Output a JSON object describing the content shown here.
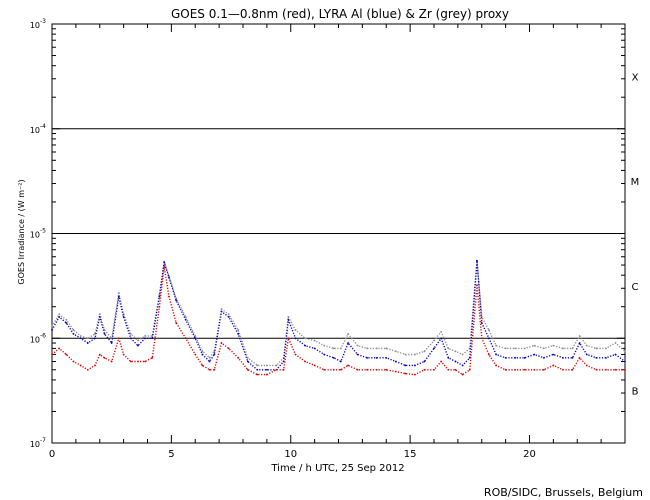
{
  "chart_data": {
    "type": "scatter",
    "title": "GOES 0.1—0.8nm (red), LYRA Al (blue) & Zr (grey) proxy",
    "xlabel": "Time / h UTC, 25 Sep 2012",
    "ylabel": "GOES Irradiance / (W m⁻²)",
    "xlim": [
      0,
      24
    ],
    "ylim": [
      1e-07,
      0.001
    ],
    "yscale": "log",
    "x_ticks": [
      0,
      5,
      10,
      15,
      20
    ],
    "x_tick_labels": [
      "0",
      "5",
      "10",
      "15",
      "20"
    ],
    "y_ticks": [
      {
        "base": "10",
        "exp": "-7"
      },
      {
        "base": "10",
        "exp": "-6"
      },
      {
        "base": "10",
        "exp": "-5"
      },
      {
        "base": "10",
        "exp": "-4"
      },
      {
        "base": "10",
        "exp": "-3"
      }
    ],
    "flare_classes": [
      {
        "label": "X",
        "center": 0.000316
      },
      {
        "label": "M",
        "center": 3.16e-05
      },
      {
        "label": "C",
        "center": 3.16e-06
      },
      {
        "label": "B",
        "center": 3.16e-07
      }
    ],
    "class_boundaries": [
      0.0001,
      1e-05,
      1e-06
    ],
    "series": [
      {
        "name": "GOES 0.1—0.8nm",
        "color": "#e00000",
        "x": [
          0.0,
          0.3,
          0.6,
          0.9,
          1.2,
          1.5,
          1.8,
          2.0,
          2.2,
          2.5,
          2.8,
          3.0,
          3.3,
          3.6,
          3.9,
          4.2,
          4.5,
          4.7,
          4.9,
          5.2,
          5.6,
          6.0,
          6.3,
          6.6,
          6.8,
          7.1,
          7.4,
          7.8,
          8.2,
          8.6,
          9.0,
          9.4,
          9.7,
          9.9,
          10.2,
          10.6,
          11.0,
          11.4,
          11.8,
          12.1,
          12.4,
          12.8,
          13.2,
          13.6,
          14.0,
          14.4,
          14.8,
          15.2,
          15.6,
          16.0,
          16.3,
          16.6,
          16.9,
          17.2,
          17.5,
          17.8,
          18.0,
          18.3,
          18.6,
          19.0,
          19.4,
          19.8,
          20.2,
          20.6,
          21.0,
          21.4,
          21.8,
          22.1,
          22.4,
          22.8,
          23.2,
          23.6,
          24.0
        ],
        "y": [
          7e-07,
          8e-07,
          7e-07,
          6e-07,
          5.5e-07,
          5e-07,
          5.5e-07,
          7e-07,
          6.5e-07,
          6e-07,
          1e-06,
          7e-07,
          6e-07,
          6e-07,
          6e-07,
          6.5e-07,
          2e-06,
          4.8e-06,
          2.5e-06,
          1.4e-06,
          1e-06,
          7e-07,
          5.5e-07,
          5e-07,
          5e-07,
          9e-07,
          8e-07,
          6.5e-07,
          5e-07,
          4.5e-07,
          4.5e-07,
          5e-07,
          5e-07,
          1e-06,
          7e-07,
          6e-07,
          5.5e-07,
          5e-07,
          5e-07,
          5e-07,
          5.5e-07,
          5e-07,
          5e-07,
          5e-07,
          5e-07,
          4.8e-07,
          4.6e-07,
          4.5e-07,
          5e-07,
          5e-07,
          6e-07,
          5e-07,
          5e-07,
          4.5e-07,
          5e-07,
          3.2e-06,
          1e-06,
          7e-07,
          5.5e-07,
          5e-07,
          5e-07,
          5e-07,
          5e-07,
          5e-07,
          5.5e-07,
          5e-07,
          5e-07,
          6.5e-07,
          5.5e-07,
          5e-07,
          5e-07,
          5e-07,
          5e-07
        ]
      },
      {
        "name": "LYRA Al",
        "color": "#0000cc",
        "x": [
          0.0,
          0.3,
          0.6,
          0.9,
          1.2,
          1.5,
          1.8,
          2.0,
          2.2,
          2.5,
          2.8,
          3.0,
          3.3,
          3.6,
          3.9,
          4.2,
          4.5,
          4.7,
          4.9,
          5.2,
          5.6,
          6.0,
          6.3,
          6.6,
          6.8,
          7.1,
          7.4,
          7.8,
          8.2,
          8.6,
          9.0,
          9.4,
          9.7,
          9.9,
          10.2,
          10.6,
          11.0,
          11.4,
          11.8,
          12.1,
          12.4,
          12.8,
          13.2,
          13.6,
          14.0,
          14.4,
          14.8,
          15.2,
          15.6,
          16.0,
          16.3,
          16.6,
          16.9,
          17.2,
          17.5,
          17.8,
          18.0,
          18.3,
          18.6,
          19.0,
          19.4,
          19.8,
          20.2,
          20.6,
          21.0,
          21.4,
          21.8,
          22.1,
          22.4,
          22.8,
          23.2,
          23.6,
          24.0
        ],
        "y": [
          1.2e-06,
          1.6e-06,
          1.4e-06,
          1.1e-06,
          1e-06,
          9e-07,
          1e-06,
          1.6e-06,
          1.1e-06,
          9e-07,
          2.5e-06,
          1.6e-06,
          1e-06,
          8.5e-07,
          1e-06,
          1e-06,
          2.5e-06,
          5.3e-06,
          3.8e-06,
          2.3e-06,
          1.5e-06,
          1e-06,
          7e-07,
          6e-07,
          7e-07,
          1.8e-06,
          1.6e-06,
          1.1e-06,
          6e-07,
          5e-07,
          5e-07,
          5e-07,
          6e-07,
          1.5e-06,
          1e-06,
          8.5e-07,
          8e-07,
          7e-07,
          6.5e-07,
          6e-07,
          9e-07,
          7e-07,
          6.5e-07,
          6.5e-07,
          6.5e-07,
          6e-07,
          5.5e-07,
          5.5e-07,
          6e-07,
          8e-07,
          1e-06,
          6.5e-07,
          6e-07,
          5.5e-07,
          6.5e-07,
          5.5e-06,
          1.4e-06,
          1e-06,
          7e-07,
          6.5e-07,
          6.5e-07,
          6.5e-07,
          7e-07,
          6.5e-07,
          7e-07,
          6.5e-07,
          6.5e-07,
          9e-07,
          7e-07,
          6.5e-07,
          6.5e-07,
          7e-07,
          6e-07
        ]
      },
      {
        "name": "Zr",
        "color": "#8c8c8c",
        "x": [
          0.0,
          0.3,
          0.6,
          0.9,
          1.2,
          1.5,
          1.8,
          2.0,
          2.2,
          2.5,
          2.8,
          3.0,
          3.3,
          3.6,
          3.9,
          4.2,
          4.5,
          4.7,
          4.9,
          5.2,
          5.6,
          6.0,
          6.3,
          6.6,
          6.8,
          7.1,
          7.4,
          7.8,
          8.2,
          8.6,
          9.0,
          9.4,
          9.7,
          9.9,
          10.2,
          10.6,
          11.0,
          11.4,
          11.8,
          12.1,
          12.4,
          12.8,
          13.2,
          13.6,
          14.0,
          14.4,
          14.8,
          15.2,
          15.6,
          16.0,
          16.3,
          16.6,
          16.9,
          17.2,
          17.5,
          17.8,
          18.0,
          18.3,
          18.6,
          19.0,
          19.4,
          19.8,
          20.2,
          20.6,
          21.0,
          21.4,
          21.8,
          22.1,
          22.4,
          22.8,
          23.2,
          23.6,
          24.0
        ],
        "y": [
          1.3e-06,
          1.7e-06,
          1.5e-06,
          1.2e-06,
          1.05e-06,
          1e-06,
          1.1e-06,
          1.7e-06,
          1.2e-06,
          1e-06,
          2.7e-06,
          1.7e-06,
          1.1e-06,
          9.5e-07,
          1.05e-06,
          1.05e-06,
          2.6e-06,
          5.4e-06,
          3.9e-06,
          2.4e-06,
          1.6e-06,
          1.05e-06,
          7.5e-07,
          6.5e-07,
          7.5e-07,
          1.9e-06,
          1.7e-06,
          1.2e-06,
          6.5e-07,
          5.5e-07,
          5.5e-07,
          5.5e-07,
          6.5e-07,
          1.6e-06,
          1.2e-06,
          1e-06,
          9.5e-07,
          8.5e-07,
          8e-07,
          8e-07,
          1.1e-06,
          8.5e-07,
          8e-07,
          8e-07,
          8e-07,
          7.5e-07,
          7e-07,
          7e-07,
          7.5e-07,
          9.5e-07,
          1.15e-06,
          8e-07,
          7.5e-07,
          7e-07,
          8e-07,
          5.4e-06,
          1.6e-06,
          1.2e-06,
          8.5e-07,
          8e-07,
          8e-07,
          8e-07,
          8.5e-07,
          8e-07,
          8.5e-07,
          8e-07,
          8e-07,
          1.05e-06,
          8.5e-07,
          8e-07,
          8e-07,
          9e-07,
          7.5e-07
        ]
      }
    ],
    "grid": false,
    "legend": "none"
  },
  "footer": {
    "credit": "ROB/SIDC, Brussels, Belgium"
  }
}
